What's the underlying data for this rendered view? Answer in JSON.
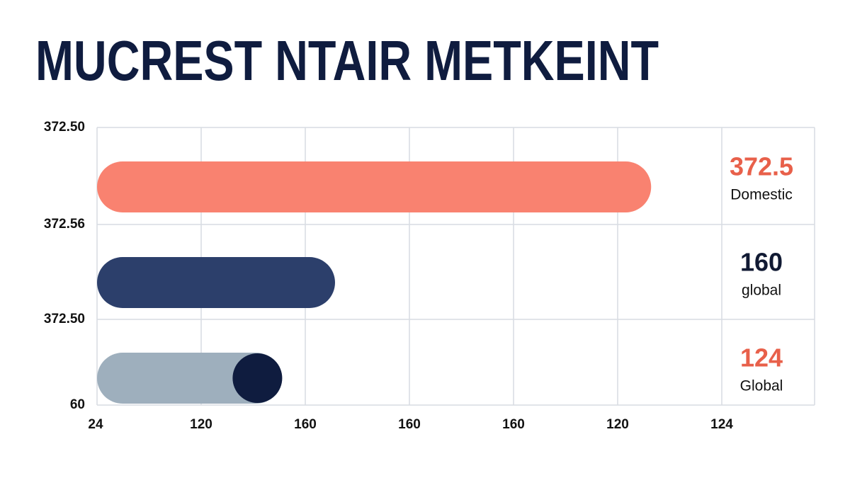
{
  "chart_data": {
    "type": "bar",
    "orientation": "horizontal",
    "title": "MUCREST NTAIR METKEINT",
    "categories": [
      "Domestic",
      "global",
      "Global"
    ],
    "values": [
      372.5,
      160,
      124
    ],
    "colors": [
      "#f98270",
      "#2c3f6b",
      "#9eafbd"
    ],
    "label_colors": [
      "#e8604a",
      "#111a33",
      "#e8604a"
    ],
    "xlim": [
      0,
      420
    ],
    "x_axis_labels": [
      "24",
      "120",
      "160",
      "160",
      "160",
      "120",
      "124"
    ],
    "y_axis_labels": [
      "372.50",
      "372.56",
      "372.50",
      "60"
    ],
    "grid": true
  }
}
